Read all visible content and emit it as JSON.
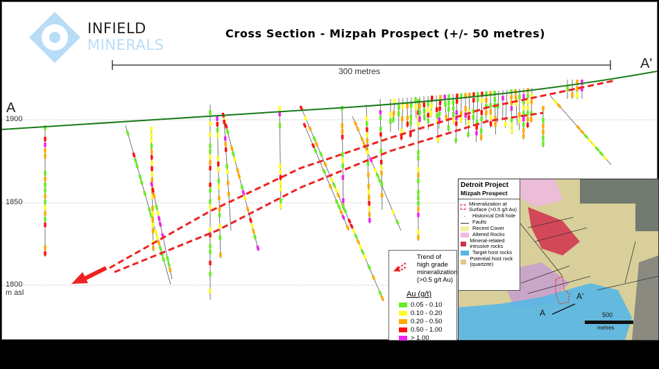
{
  "logo": {
    "line1": "INFIELD",
    "line2": "MINERALS"
  },
  "title": "Cross Section - Mizpah Prospect (+/- 50 metres)",
  "scale_bar": {
    "label": "300 metres"
  },
  "section_labels": {
    "start": "A",
    "end": "A'"
  },
  "elevation_labels": [
    "1900",
    "1850",
    "1800"
  ],
  "elevation_unit": "m asl",
  "trend_legend": {
    "text": [
      "Trend of",
      "high grade",
      "mineralization",
      "(>0.5 g/t Au)"
    ]
  },
  "au_legend": {
    "title": "Au (g/t)",
    "items": [
      {
        "label": "0.05 - 0.10",
        "color": "#66ee22"
      },
      {
        "label": "0.10 - 0.20",
        "color": "#ffff22"
      },
      {
        "label": "0.20 - 0.50",
        "color": "#ffaa00"
      },
      {
        "label": "0.50 - 1.00",
        "color": "#ff1111"
      },
      {
        "label": "> 1.00",
        "color": "#ee22ee"
      }
    ]
  },
  "inset": {
    "title": "Detroit Project",
    "subtitle": "Mizpah Prospect",
    "items": [
      {
        "label": "Mineralization at Surface (>0.5 g/t Au)",
        "color": "none"
      },
      {
        "label": "Historical Drill hole",
        "color": "none"
      },
      {
        "label": "Faults",
        "color": "none"
      },
      {
        "label": "Recent Cover",
        "color": "#f2eea0"
      },
      {
        "label": "Altered Rocks",
        "color": "#efb8e6"
      },
      {
        "label": "Mineral-related intrusive rocks",
        "color": "#d0304c"
      },
      {
        "label": "Target host rocks",
        "color": "#56b6e6"
      },
      {
        "label": "Potential host rock (quartzite)",
        "color": "#dcc784"
      }
    ],
    "section_start": "A",
    "section_end": "A'",
    "scale_label": "500",
    "scale_unit": "metres"
  },
  "colors": {
    "surface": "#1a7a1a",
    "trend": "#ee2222",
    "logo": "#b9dcf7"
  }
}
